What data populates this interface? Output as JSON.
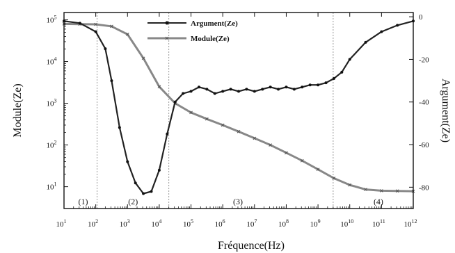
{
  "chart_data": {
    "type": "line",
    "title": "",
    "xlabel": "Fréquence(Hz)",
    "ylabel_left": "Module(Ze)",
    "ylabel_right": "Argument(Ze)",
    "x_scale": "log",
    "xlim": [
      10,
      1000000000000.0
    ],
    "x_ticks": [
      {
        "value": 10,
        "base": "10",
        "exp": "1"
      },
      {
        "value": 100,
        "base": "10",
        "exp": "2"
      },
      {
        "value": 1000,
        "base": "10",
        "exp": "3"
      },
      {
        "value": 10000,
        "base": "10",
        "exp": "4"
      },
      {
        "value": 100000,
        "base": "10",
        "exp": "5"
      },
      {
        "value": 1000000,
        "base": "10",
        "exp": "6"
      },
      {
        "value": 10000000,
        "base": "10",
        "exp": "7"
      },
      {
        "value": 100000000,
        "base": "10",
        "exp": "8"
      },
      {
        "value": 1000000000,
        "base": "10",
        "exp": "9"
      },
      {
        "value": 10000000000,
        "base": "10",
        "exp": "10"
      },
      {
        "value": 100000000000,
        "base": "10",
        "exp": "11"
      },
      {
        "value": 1000000000000,
        "base": "10",
        "exp": "12"
      }
    ],
    "y_left_scale": "log",
    "y_left_lim": [
      3,
      150000
    ],
    "y_left_ticks": [
      {
        "value": 10,
        "base": "10",
        "exp": "1"
      },
      {
        "value": 100,
        "base": "10",
        "exp": "2"
      },
      {
        "value": 1000,
        "base": "10",
        "exp": "3"
      },
      {
        "value": 10000,
        "base": "10",
        "exp": "4"
      },
      {
        "value": 100000,
        "base": "10",
        "exp": "5"
      }
    ],
    "y_right_lim": [
      -90,
      2
    ],
    "y_right_ticks": [
      0,
      -20,
      -40,
      -60,
      -80
    ],
    "legend_position": "top-center",
    "vlines_x": [
      110,
      20000,
      3000000000
    ],
    "regions": [
      {
        "label": "(1)",
        "x": 40
      },
      {
        "label": "(2)",
        "x": 1500
      },
      {
        "label": "(3)",
        "x": 3000000
      },
      {
        "label": "(4)",
        "x": 80000000000
      }
    ],
    "series": [
      {
        "name": "Argument(Ze)",
        "axis": "right",
        "marker": "dot",
        "x": [
          10,
          31.6,
          100,
          200,
          316,
          562,
          1000,
          1780,
          3160,
          5620,
          10000,
          17800,
          31600,
          56200,
          100000,
          178000,
          316000,
          562000,
          1000000,
          1780000,
          3160000,
          5620000,
          10000000,
          17800000,
          31600000,
          56200000,
          100000000,
          178000000,
          316000000,
          562000000,
          1000000000,
          1780000000,
          3160000000,
          5620000000,
          10000000000,
          31600000000,
          100000000000,
          316000000000,
          1000000000000
        ],
        "y": [
          -2,
          -3,
          -7,
          -15,
          -30,
          -52,
          -68,
          -78,
          -83,
          -82,
          -72,
          -55,
          -40,
          -36,
          -35,
          -33,
          -34,
          -36,
          -35,
          -34,
          -35,
          -34,
          -35,
          -34,
          -33,
          -34,
          -33,
          -34,
          -33,
          -32,
          -32,
          -31,
          -29,
          -26,
          -20,
          -12,
          -7,
          -4,
          -2
        ]
      },
      {
        "name": "Module(Ze)",
        "axis": "left",
        "marker": "x",
        "x": [
          10,
          31.6,
          100,
          316,
          1000,
          3160,
          10000,
          31600,
          100000,
          316000,
          1000000,
          3160000,
          10000000,
          31600000,
          100000000,
          316000000,
          1000000000,
          3160000000,
          10000000000,
          31600000000,
          100000000000,
          316000000000,
          1000000000000
        ],
        "y": [
          80000,
          79000,
          78000,
          70000,
          45000,
          12000,
          2500,
          1000,
          600,
          420,
          300,
          210,
          145,
          100,
          65,
          42,
          26,
          16,
          11,
          8.6,
          8.0,
          7.9,
          7.8
        ]
      }
    ]
  }
}
